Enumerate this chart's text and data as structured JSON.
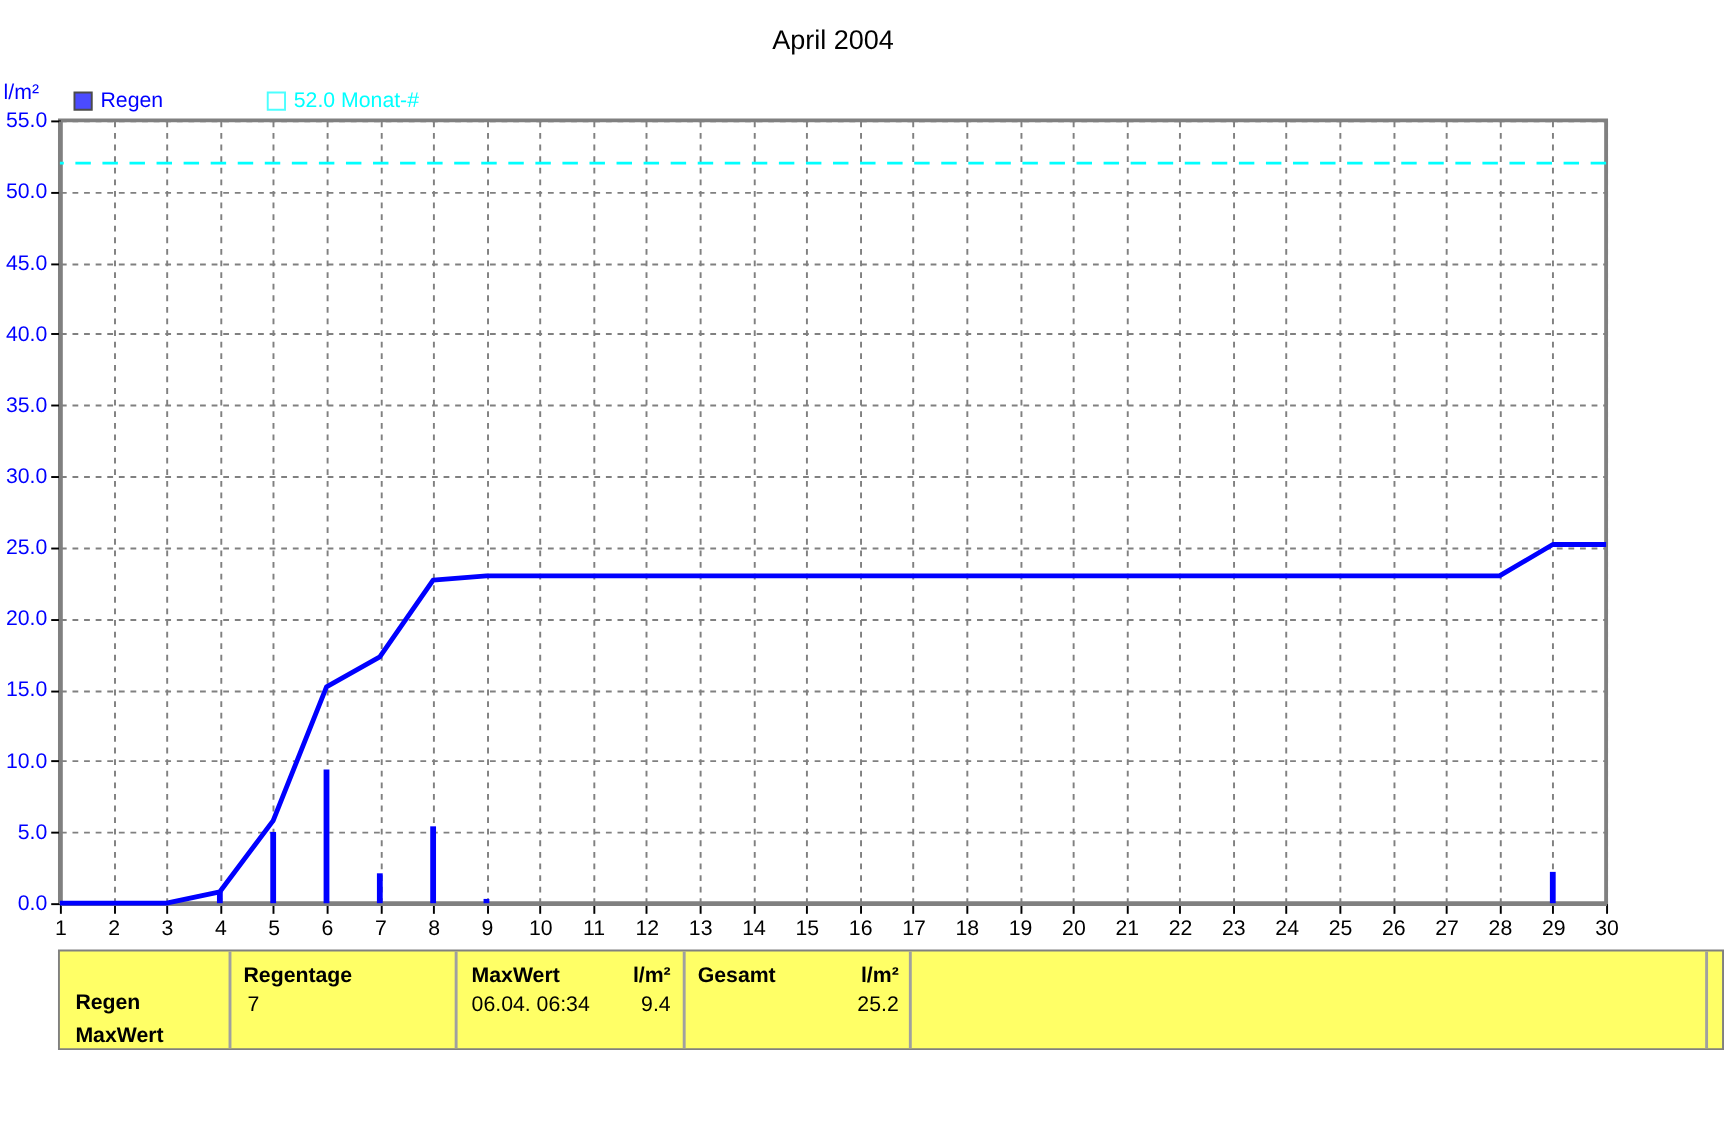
{
  "chart_data": {
    "type": "bar",
    "title": "April 2004",
    "ylabel": "l/m²",
    "x": [
      1,
      2,
      3,
      4,
      5,
      6,
      7,
      8,
      9,
      10,
      11,
      12,
      13,
      14,
      15,
      16,
      17,
      18,
      19,
      20,
      21,
      22,
      23,
      24,
      25,
      26,
      27,
      28,
      29,
      30
    ],
    "series": [
      {
        "name": "Regen",
        "type": "bar",
        "color": "#0000ff",
        "values": [
          0,
          0,
          0,
          0.8,
          5.0,
          9.4,
          2.1,
          5.4,
          0.3,
          0,
          0,
          0,
          0,
          0,
          0,
          0,
          0,
          0,
          0,
          0,
          0,
          0,
          0,
          0,
          0,
          0,
          0,
          0,
          2.2,
          0
        ]
      },
      {
        "type": "line",
        "color": "#0000ff",
        "values": [
          0,
          0,
          0,
          0.8,
          5.8,
          15.2,
          17.3,
          22.7,
          23.0,
          23.0,
          23.0,
          23.0,
          23.0,
          23.0,
          23.0,
          23.0,
          23.0,
          23.0,
          23.0,
          23.0,
          23.0,
          23.0,
          23.0,
          23.0,
          23.0,
          23.0,
          23.0,
          23.0,
          25.2,
          25.2
        ]
      }
    ],
    "xlim": [
      1,
      30
    ],
    "xticks": [
      1,
      2,
      3,
      4,
      5,
      6,
      7,
      8,
      9,
      10,
      11,
      12,
      13,
      14,
      15,
      16,
      17,
      18,
      19,
      20,
      21,
      22,
      23,
      24,
      25,
      26,
      27,
      28,
      29,
      30
    ],
    "ylim": [
      0,
      55
    ],
    "yticks": [
      {
        "value": 0,
        "label": "0.0"
      },
      {
        "value": 5,
        "label": "5.0"
      },
      {
        "value": 10,
        "label": "10.0"
      },
      {
        "value": 15,
        "label": "15.0"
      },
      {
        "value": 20,
        "label": "20.0"
      },
      {
        "value": 25,
        "label": "25.0"
      },
      {
        "value": 30,
        "label": "30.0"
      },
      {
        "value": 35,
        "label": "35.0"
      },
      {
        "value": 40,
        "label": "40.0"
      },
      {
        "value": 45,
        "label": "45.0"
      },
      {
        "value": 50,
        "label": "50.0"
      },
      {
        "value": 55,
        "label": "55.0"
      }
    ],
    "ref_lines": [
      {
        "axis": "y",
        "value": 52,
        "label": "52.0 Monat-#",
        "color": "#00ffff",
        "line_style": "dashed"
      }
    ],
    "grid": true,
    "legend": "top left",
    "annotations": [
      "Regen",
      "MaxWert",
      "Regentage",
      "7",
      "MaxWert",
      "l/m²",
      "06.04.  06:34",
      "9.4",
      "Gesamt",
      "l/m²",
      "25.2"
    ]
  }
}
